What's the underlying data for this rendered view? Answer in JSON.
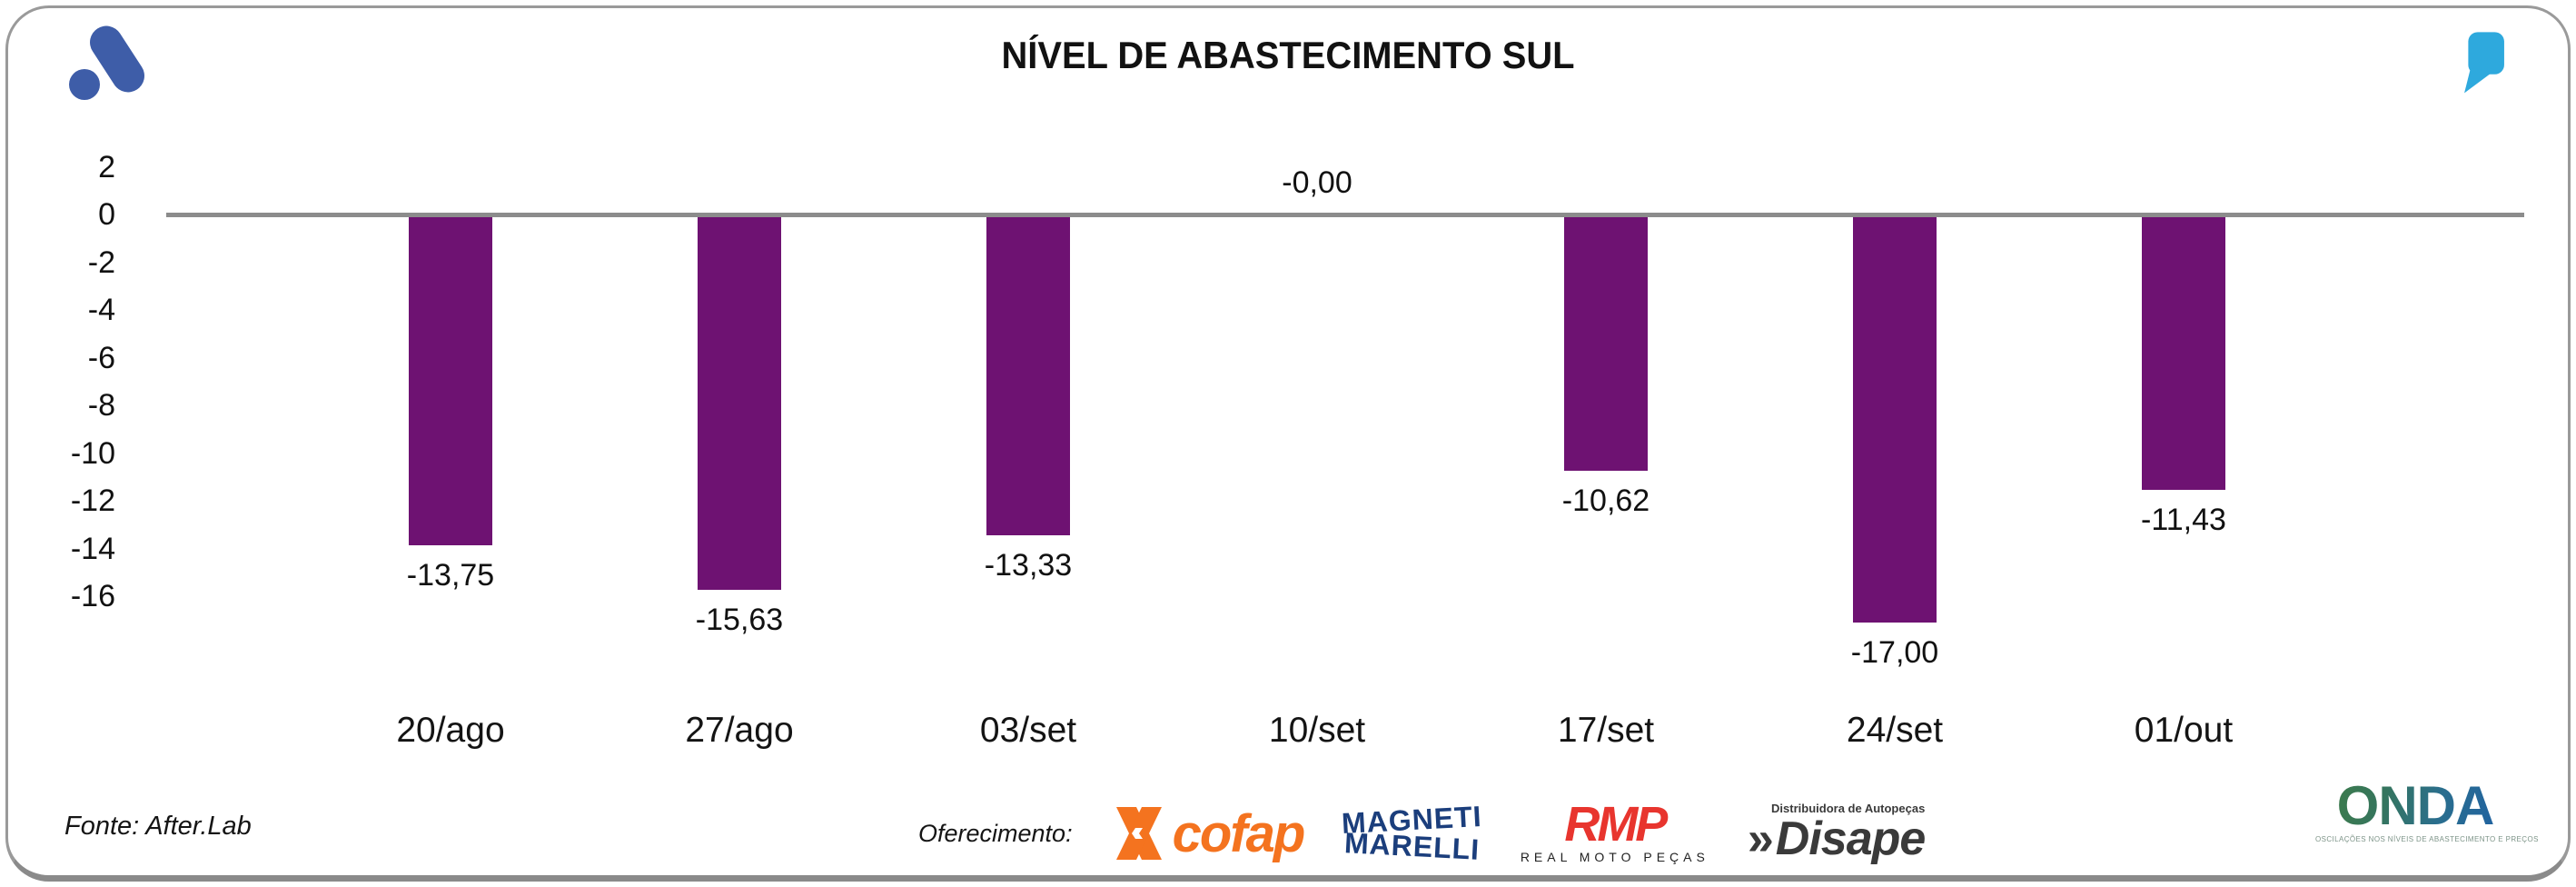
{
  "header": {
    "title": "NÍVEL DE ABASTECIMENTO SUL",
    "brand_icon": "afterlab-mark",
    "quote_icon": "quote-mark"
  },
  "colors": {
    "bar": "#6E1272",
    "zero_line": "#8C8C8C",
    "brand_blue": "#3E5DA8",
    "quote_blue": "#2EA9DD",
    "cofap_orange": "#F4731F",
    "magneti_navy": "#1B3E7C",
    "rmp_red": "#E8352E",
    "disape_gray": "#3A3A3A"
  },
  "chart_data": {
    "type": "bar",
    "title": "NÍVEL DE ABASTECIMENTO SUL",
    "categories": [
      "20/ago",
      "27/ago",
      "03/set",
      "10/set",
      "17/set",
      "24/set",
      "01/out"
    ],
    "values": [
      -13.75,
      -15.63,
      -13.33,
      0,
      -10.62,
      -17.0,
      -11.43
    ],
    "value_labels": [
      "-13,75",
      "-15,63",
      "-13,33",
      "-0,00",
      "-10,62",
      "-17,00",
      "-11,43"
    ],
    "yticks": [
      {
        "v": 2,
        "label": "2"
      },
      {
        "v": 0,
        "label": "0"
      },
      {
        "v": -2,
        "label": "-2"
      },
      {
        "v": -4,
        "label": "-4"
      },
      {
        "v": -6,
        "label": "-6"
      },
      {
        "v": -8,
        "label": "-8"
      },
      {
        "v": -10,
        "label": "-10"
      },
      {
        "v": -12,
        "label": "-12"
      },
      {
        "v": -14,
        "label": "-14"
      },
      {
        "v": -16,
        "label": "-16"
      }
    ],
    "ylim": [
      -18,
      2.5
    ],
    "xlabel": "",
    "ylabel": "",
    "grid": false,
    "legend": null
  },
  "footer": {
    "source": "Fonte: After.Lab",
    "sponsor_label": "Oferecimento:",
    "sponsors": [
      {
        "name": "Cofap",
        "text": "cofap"
      },
      {
        "name": "Magneti Marelli",
        "line1": "MAGNETI",
        "line2": "MARELLI"
      },
      {
        "name": "RMP",
        "text": "RMP",
        "subtext": "REAL MOTO PEÇAS"
      },
      {
        "name": "Disape",
        "chevrons": "»",
        "text": "Disape",
        "toptext": "Distribuidora de Autopeças"
      }
    ],
    "onda": {
      "text": "ONDA",
      "tagline": "OSCILAÇÕES NOS NÍVEIS DE ABASTECIMENTO E PREÇOS"
    }
  }
}
